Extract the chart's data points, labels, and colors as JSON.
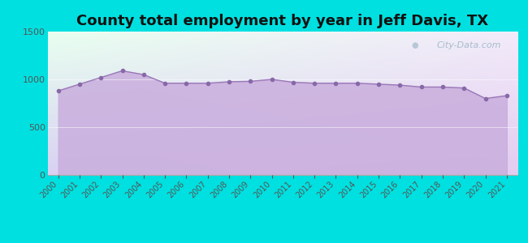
{
  "title": "County total employment by year in Jeff Davis, TX",
  "years": [
    2000,
    2001,
    2002,
    2003,
    2004,
    2005,
    2006,
    2007,
    2008,
    2009,
    2010,
    2011,
    2012,
    2013,
    2014,
    2015,
    2016,
    2017,
    2018,
    2019,
    2020,
    2021
  ],
  "values": [
    880,
    950,
    1020,
    1090,
    1050,
    960,
    960,
    960,
    975,
    980,
    1000,
    970,
    960,
    960,
    960,
    950,
    940,
    920,
    920,
    910,
    800,
    830
  ],
  "ylim": [
    0,
    1500
  ],
  "yticks": [
    0,
    500,
    1000,
    1500
  ],
  "fill_color": "#c9aedd",
  "fill_alpha": 0.85,
  "line_color": "#9a78b8",
  "marker_color": "#8868a8",
  "background_outer": "#00e0e0",
  "title_fontsize": 13,
  "title_color": "#111111",
  "watermark_text": "City-Data.com",
  "watermark_color": "#a0b8c8",
  "tick_color": "#555555",
  "tick_fontsize": 7,
  "ytick_fontsize": 8
}
